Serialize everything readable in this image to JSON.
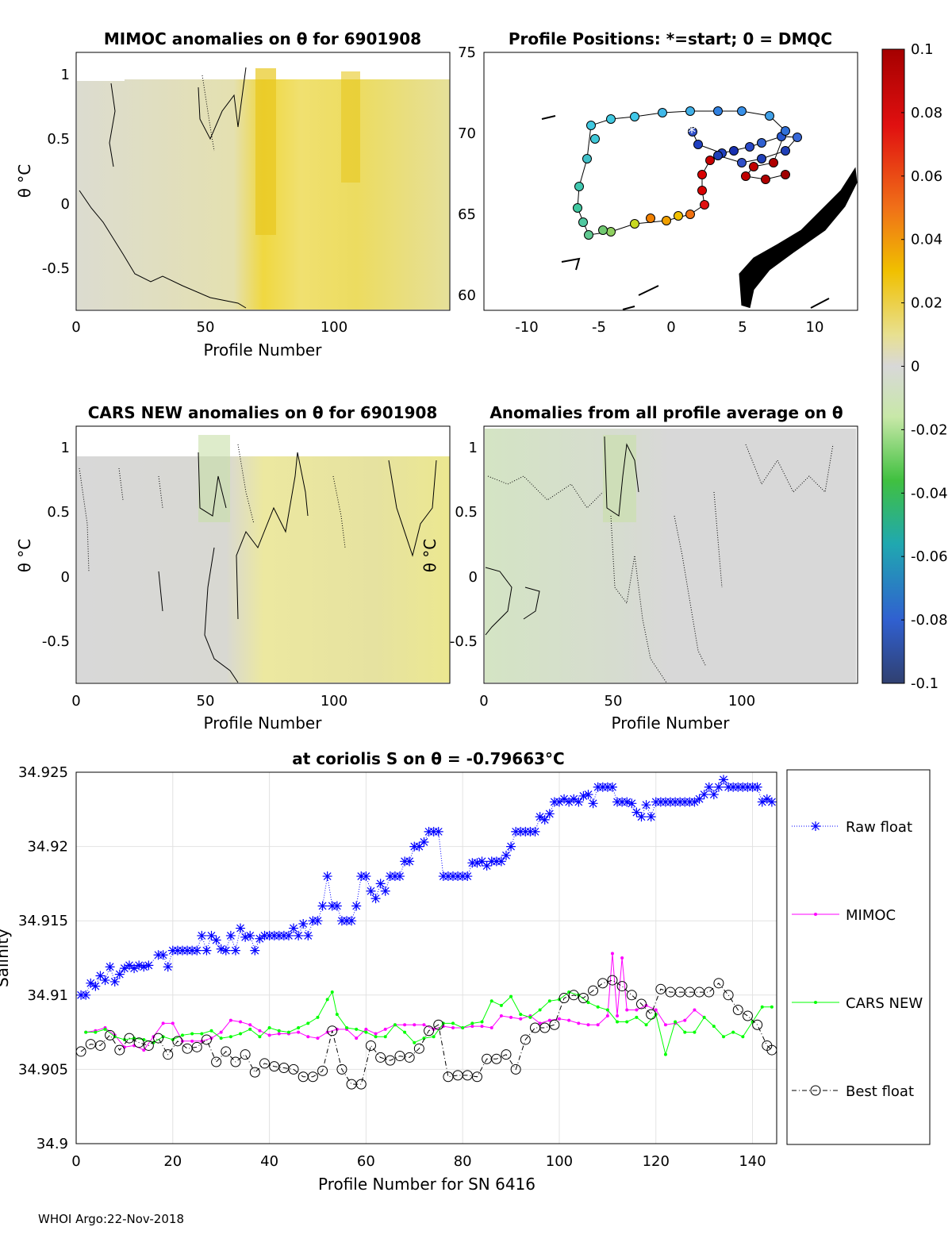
{
  "panels": {
    "mimoc": {
      "title": "MIMOC anomalies on θ  for 6901908",
      "xlabel": "Profile Number",
      "ylabel": "θ °C",
      "xticks": [
        "0",
        "50",
        "100"
      ],
      "yticks": [
        "1",
        "0.5",
        "0",
        "-0.5"
      ],
      "xlim": [
        0,
        145
      ],
      "ylim": [
        -0.84,
        1.15
      ]
    },
    "cars": {
      "title": "CARS NEW anomalies on θ for 6901908",
      "xlabel": "Profile Number",
      "ylabel": "θ °C",
      "xticks": [
        "0",
        "50",
        "100"
      ],
      "yticks": [
        "1",
        "0.5",
        "0",
        "-0.5"
      ],
      "xlim": [
        0,
        145
      ],
      "ylim": [
        -0.84,
        1.15
      ]
    },
    "avg": {
      "title": "Anomalies from all profile average on θ",
      "xlabel": "Profile Number",
      "ylabel": "θ °C",
      "xticks": [
        "0",
        "50",
        "100"
      ],
      "yticks": [
        "1",
        "0.5",
        "0",
        "-0.5"
      ],
      "xlim": [
        0,
        145
      ],
      "ylim": [
        -0.84,
        1.15
      ]
    },
    "map": {
      "title": "Profile Positions: *=start; 0 = DMQC",
      "xticks": [
        "-10",
        "-5",
        "0",
        "5",
        "10"
      ],
      "yticks": [
        "75",
        "70",
        "65",
        "60"
      ],
      "xlim": [
        -13,
        13
      ],
      "ylim": [
        59,
        75
      ]
    }
  },
  "colorbar": {
    "ticks": [
      "0.1",
      "0.08",
      "0.06",
      "0.04",
      "0.02",
      "0",
      "-0.02",
      "-0.04",
      "-0.06",
      "-0.08",
      "-0.1"
    ]
  },
  "chart_data": {
    "type": "line",
    "title": "at coriolis S on θ = -0.79663°C",
    "xlabel": "Profile Number for SN 6416",
    "ylabel": "Salinity",
    "xlim": [
      0,
      145
    ],
    "ylim": [
      34.9,
      34.925
    ],
    "xticks": [
      "0",
      "20",
      "40",
      "60",
      "80",
      "100",
      "120",
      "140"
    ],
    "yticks": [
      "34.925",
      "34.92",
      "34.915",
      "34.91",
      "34.905",
      "34.9"
    ],
    "series": [
      {
        "name": "Raw float",
        "color": "#0000ff",
        "x": [
          1,
          2,
          3,
          4,
          5,
          6,
          7,
          8,
          9,
          10,
          11,
          12,
          13,
          14,
          15,
          17,
          18,
          19,
          20,
          21,
          22,
          23,
          24,
          25,
          26,
          27,
          28,
          29,
          30,
          31,
          32,
          33,
          34,
          35,
          36,
          37,
          38,
          39,
          40,
          41,
          42,
          43,
          44,
          45,
          46,
          47,
          48,
          49,
          50,
          51,
          52,
          53,
          54,
          55,
          56,
          57,
          58,
          59,
          60,
          61,
          62,
          63,
          64,
          65,
          66,
          67,
          68,
          69,
          70,
          71,
          72,
          73,
          74,
          75,
          76,
          77,
          78,
          79,
          80,
          81,
          82,
          83,
          84,
          85,
          86,
          87,
          88,
          89,
          90,
          91,
          92,
          93,
          94,
          95,
          96,
          97,
          98,
          99,
          100,
          101,
          102,
          103,
          104,
          105,
          106,
          107,
          108,
          109,
          110,
          111,
          112,
          113,
          114,
          115,
          116,
          117,
          118,
          119,
          120,
          121,
          122,
          123,
          124,
          125,
          126,
          127,
          128,
          129,
          130,
          131,
          132,
          133,
          134,
          135,
          136,
          137,
          138,
          139,
          140,
          141,
          142,
          143,
          144
        ],
        "y": [
          34.91,
          34.91,
          34.9108,
          34.9106,
          34.9113,
          34.911,
          34.9119,
          34.9109,
          34.9114,
          34.9118,
          34.912,
          34.9118,
          34.912,
          34.9119,
          34.912,
          34.9127,
          34.9127,
          34.9119,
          34.913,
          34.913,
          34.913,
          34.913,
          34.913,
          34.913,
          34.914,
          34.913,
          34.914,
          34.9137,
          34.9131,
          34.913,
          34.914,
          34.913,
          34.9145,
          34.9139,
          34.914,
          34.913,
          34.9138,
          34.914,
          34.914,
          34.914,
          34.914,
          34.914,
          34.914,
          34.9145,
          34.914,
          34.9148,
          34.914,
          34.915,
          34.915,
          34.916,
          34.918,
          34.916,
          34.916,
          34.915,
          34.915,
          34.915,
          34.916,
          34.918,
          34.918,
          34.917,
          34.9165,
          34.9175,
          34.917,
          34.918,
          34.918,
          34.918,
          34.919,
          34.919,
          34.92,
          34.92,
          34.9203,
          34.921,
          34.921,
          34.921,
          34.918,
          34.918,
          34.918,
          34.918,
          34.918,
          34.918,
          34.9189,
          34.9189,
          34.919,
          34.9187,
          34.919,
          34.919,
          34.919,
          34.9194,
          34.92,
          34.921,
          34.921,
          34.921,
          34.921,
          34.921,
          34.922,
          34.9218,
          34.9222,
          34.923,
          34.923,
          34.9232,
          34.923,
          34.9232,
          34.923,
          34.9234,
          34.9235,
          34.9229,
          34.924,
          34.924,
          34.924,
          34.924,
          34.923,
          34.923,
          34.923,
          34.9229,
          34.9223,
          34.922,
          34.9228,
          34.922,
          34.923,
          34.923,
          34.923,
          34.923,
          34.923,
          34.923,
          34.923,
          34.923,
          34.923,
          34.9232,
          34.9235,
          34.924,
          34.9235,
          34.924,
          34.9245,
          34.924,
          34.924,
          34.924,
          34.924,
          34.924,
          34.924,
          34.924,
          34.923,
          34.9232,
          34.923
        ]
      },
      {
        "name": "MIMOC",
        "color": "#ff00ff",
        "x": [
          2,
          4,
          6,
          8,
          10,
          12,
          14,
          16,
          18,
          20,
          22,
          24,
          26,
          28,
          30,
          32,
          34,
          36,
          38,
          40,
          42,
          44,
          46,
          48,
          50,
          52,
          54,
          56,
          58,
          60,
          62,
          64,
          66,
          68,
          70,
          72,
          74,
          76,
          78,
          80,
          82,
          84,
          86,
          88,
          90,
          92,
          94,
          96,
          98,
          100,
          102,
          104,
          106,
          108,
          110,
          111,
          112,
          113,
          114,
          116,
          118,
          120,
          122,
          124,
          126,
          128,
          130
        ],
        "y": [
          34.9075,
          34.9076,
          34.9078,
          34.9073,
          34.9065,
          34.9066,
          34.9063,
          34.9072,
          34.9081,
          34.9081,
          34.9069,
          34.9069,
          34.9069,
          34.9071,
          34.9075,
          34.9083,
          34.9082,
          34.908,
          34.9076,
          34.9073,
          34.9074,
          34.9074,
          34.9075,
          34.9072,
          34.9071,
          34.9075,
          34.9077,
          34.9077,
          34.9071,
          34.9077,
          34.9074,
          34.9077,
          34.908,
          34.908,
          34.908,
          34.908,
          34.9077,
          34.9079,
          34.9078,
          34.9078,
          34.9079,
          34.9079,
          34.9078,
          34.9086,
          34.9085,
          34.9084,
          34.9086,
          34.9081,
          34.9083,
          34.9084,
          34.9083,
          34.9081,
          34.908,
          34.908,
          34.9086,
          34.9128,
          34.9086,
          34.9125,
          34.909,
          34.909,
          34.9093,
          34.909,
          34.908,
          34.9081,
          34.9083,
          34.909,
          34.9085
        ]
      },
      {
        "name": "CARS NEW",
        "color": "#00ff00",
        "x": [
          2,
          4,
          6,
          8,
          10,
          12,
          14,
          16,
          18,
          20,
          22,
          24,
          26,
          28,
          30,
          32,
          34,
          36,
          38,
          40,
          42,
          44,
          46,
          48,
          50,
          52,
          53,
          54,
          56,
          58,
          60,
          62,
          64,
          66,
          68,
          70,
          72,
          74,
          76,
          78,
          80,
          82,
          84,
          86,
          88,
          90,
          92,
          94,
          96,
          98,
          100,
          102,
          104,
          106,
          108,
          110,
          112,
          114,
          116,
          118,
          120,
          122,
          124,
          126,
          128,
          130,
          132,
          134,
          136,
          138,
          140,
          142,
          144
        ],
        "y": [
          34.9075,
          34.9075,
          34.9077,
          34.9072,
          34.907,
          34.9071,
          34.907,
          34.9068,
          34.9072,
          34.907,
          34.9073,
          34.9074,
          34.9074,
          34.9076,
          34.9071,
          34.9072,
          34.9074,
          34.9077,
          34.9072,
          34.9078,
          34.9076,
          34.9075,
          34.9078,
          34.9081,
          34.9085,
          34.9097,
          34.9102,
          34.9087,
          34.9078,
          34.9077,
          34.9075,
          34.9072,
          34.9072,
          34.908,
          34.9075,
          34.9068,
          34.9071,
          34.9072,
          34.9081,
          34.9081,
          34.9078,
          34.9081,
          34.9082,
          34.9096,
          34.9093,
          34.9099,
          34.9087,
          34.9085,
          34.909,
          34.9096,
          34.9097,
          34.9102,
          34.91,
          34.9095,
          34.9092,
          34.909,
          34.9082,
          34.9082,
          34.9085,
          34.908,
          34.9087,
          34.906,
          34.9082,
          34.9075,
          34.9075,
          34.9085,
          34.9079,
          34.9072,
          34.9075,
          34.9072,
          34.9082,
          34.9092,
          34.9092
        ]
      },
      {
        "name": "Best float",
        "color": "#000000",
        "x": [
          1,
          3,
          5,
          7,
          9,
          11,
          13,
          15,
          17,
          19,
          21,
          23,
          25,
          27,
          29,
          31,
          33,
          35,
          37,
          39,
          41,
          43,
          45,
          47,
          49,
          51,
          53,
          55,
          57,
          59,
          61,
          63,
          65,
          67,
          69,
          71,
          73,
          75,
          77,
          79,
          81,
          83,
          85,
          87,
          89,
          91,
          93,
          95,
          97,
          99,
          101,
          103,
          105,
          107,
          109,
          111,
          113,
          115,
          117,
          119,
          121,
          123,
          125,
          127,
          129,
          131,
          133,
          135,
          137,
          139,
          141,
          143,
          144
        ],
        "y": [
          34.9062,
          34.9067,
          34.9066,
          34.9073,
          34.9063,
          34.9071,
          34.9068,
          34.9066,
          34.9071,
          34.906,
          34.9069,
          34.9064,
          34.9065,
          34.907,
          34.9055,
          34.9062,
          34.9055,
          34.906,
          34.9048,
          34.9054,
          34.9052,
          34.9051,
          34.905,
          34.9045,
          34.9045,
          34.9049,
          34.9076,
          34.905,
          34.904,
          34.904,
          34.9066,
          34.9058,
          34.9056,
          34.9059,
          34.9058,
          34.9064,
          34.9076,
          34.908,
          34.9045,
          34.9046,
          34.9046,
          34.9045,
          34.9057,
          34.9057,
          34.906,
          34.905,
          34.907,
          34.9078,
          34.9078,
          34.908,
          34.9098,
          34.91,
          34.9098,
          34.9103,
          34.9108,
          34.911,
          34.9106,
          34.91,
          34.9094,
          34.9087,
          34.9104,
          34.9102,
          34.9102,
          34.9102,
          34.9102,
          34.9102,
          34.9108,
          34.91,
          34.909,
          34.9086,
          34.908,
          34.9066,
          34.9063
        ]
      }
    ]
  },
  "footer": "WHOI Argo:22-Nov-2018"
}
